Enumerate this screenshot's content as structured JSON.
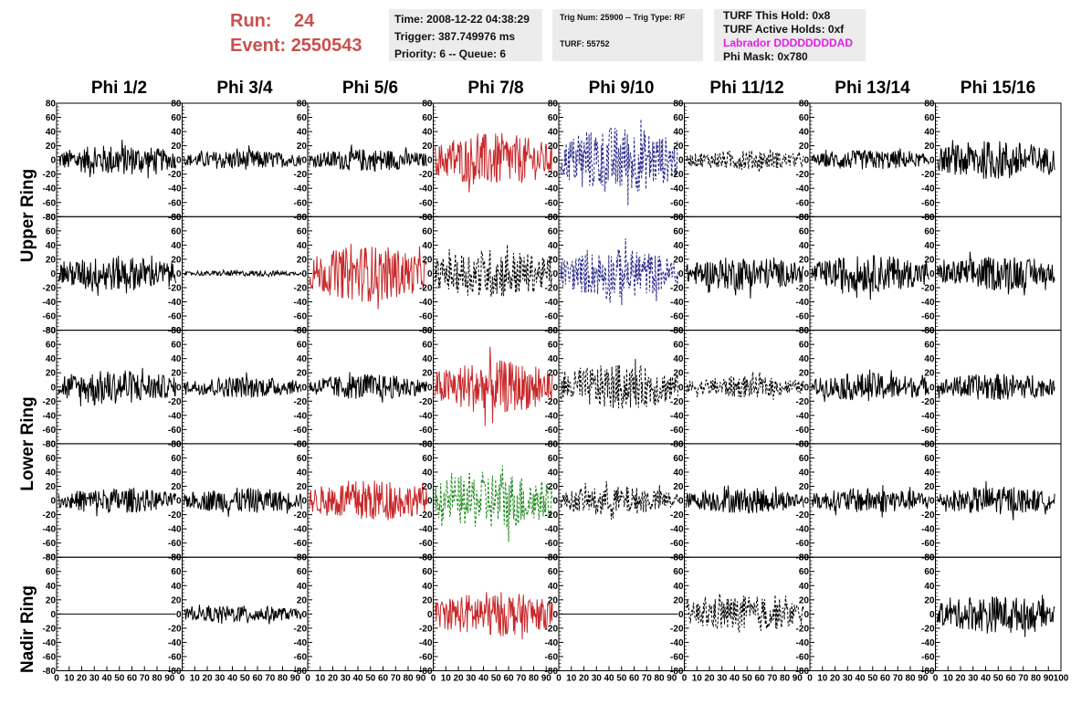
{
  "header": {
    "run_label": "Run:",
    "run_value": "24",
    "event_label": "Event:",
    "event_value": "2550543"
  },
  "info_box_1": {
    "time": "Time: 2008-12-22 04:38:29",
    "trigger": "Trigger: 387.749976 ms",
    "priority": "Priority: 6 -- Queue: 6"
  },
  "info_box_2": {
    "trig": "Trig Num: 25900 -- Trig Type: RF",
    "turf": "TURF: 55752"
  },
  "info_box_3": {
    "this_hold": "TURF This Hold: 0x8",
    "active_holds": "TURF Active Holds: 0xf",
    "labrador": "Labrador DDDDDDDDAD",
    "phi_mask": "Phi Mask: 0x780"
  },
  "colors": {
    "black": "#000000",
    "red": "#c8282a",
    "blue": "#2a2a8c",
    "green": "#1f8a1f",
    "header_red": "#c9504d",
    "magenta": "#e51ee5"
  },
  "phi_headers": [
    "Phi 1/2",
    "Phi 3/4",
    "Phi 5/6",
    "Phi 7/8",
    "Phi 9/10",
    "Phi 11/12",
    "Phi 13/14",
    "Phi 15/16"
  ],
  "ring_labels": {
    "upper": "Upper Ring",
    "lower": "Lower Ring",
    "nadir": "Nadir Ring"
  },
  "chart_data": {
    "type": "line",
    "grid": false,
    "ylim": [
      -80,
      80
    ],
    "xlim": [
      0,
      100
    ],
    "y_ticks": [
      "80",
      "60",
      "40",
      "20",
      "0",
      "-20",
      "-40",
      "-60",
      "-80"
    ],
    "x_ticks": [
      "0",
      "10",
      "20",
      "30",
      "40",
      "50",
      "60",
      "70",
      "80",
      "90",
      "100"
    ],
    "rows": 5,
    "cols": 8,
    "waveforms": [
      [
        {
          "color": "black",
          "amp": 22,
          "dash": false
        },
        {
          "color": "black",
          "amp": 14,
          "dash": false
        },
        {
          "color": "black",
          "amp": 16,
          "dash": false
        },
        {
          "color": "red",
          "amp": 38,
          "dash": false
        },
        {
          "color": "blue",
          "amp": 48,
          "dash": true
        },
        {
          "color": "black",
          "amp": 14,
          "dash": true
        },
        {
          "color": "black",
          "amp": 14,
          "dash": false
        },
        {
          "color": "black",
          "amp": 28,
          "dash": false
        }
      ],
      [
        {
          "color": "black",
          "amp": 25,
          "dash": false
        },
        {
          "color": "black",
          "amp": 4,
          "dash": false
        },
        {
          "color": "red",
          "amp": 40,
          "dash": false
        },
        {
          "color": "black",
          "amp": 35,
          "dash": true
        },
        {
          "color": "blue",
          "amp": 35,
          "dash": true
        },
        {
          "color": "black",
          "amp": 24,
          "dash": false
        },
        {
          "color": "black",
          "amp": 26,
          "dash": false
        },
        {
          "color": "black",
          "amp": 24,
          "dash": false
        }
      ],
      [
        {
          "color": "black",
          "amp": 24,
          "dash": false
        },
        {
          "color": "black",
          "amp": 15,
          "dash": false
        },
        {
          "color": "black",
          "amp": 18,
          "dash": false
        },
        {
          "color": "red",
          "amp": 38,
          "dash": false
        },
        {
          "color": "black",
          "amp": 32,
          "dash": true
        },
        {
          "color": "black",
          "amp": 15,
          "dash": true
        },
        {
          "color": "black",
          "amp": 20,
          "dash": false
        },
        {
          "color": "black",
          "amp": 19,
          "dash": false
        }
      ],
      [
        {
          "color": "black",
          "amp": 18,
          "dash": false
        },
        {
          "color": "black",
          "amp": 18,
          "dash": false
        },
        {
          "color": "red",
          "amp": 30,
          "dash": false
        },
        {
          "color": "green",
          "amp": 42,
          "dash": true
        },
        {
          "color": "black",
          "amp": 20,
          "dash": true
        },
        {
          "color": "black",
          "amp": 18,
          "dash": false
        },
        {
          "color": "black",
          "amp": 18,
          "dash": false
        },
        {
          "color": "black",
          "amp": 20,
          "dash": false
        }
      ],
      [
        {
          "color": "black",
          "amp": 0,
          "dash": false
        },
        {
          "color": "black",
          "amp": 12,
          "dash": false
        },
        {
          "color": "none",
          "amp": 0,
          "dash": false
        },
        {
          "color": "red",
          "amp": 32,
          "dash": false
        },
        {
          "color": "black",
          "amp": 0,
          "dash": false
        },
        {
          "color": "black",
          "amp": 26,
          "dash": true
        },
        {
          "color": "none",
          "amp": 0,
          "dash": false
        },
        {
          "color": "black",
          "amp": 26,
          "dash": false
        }
      ]
    ]
  }
}
